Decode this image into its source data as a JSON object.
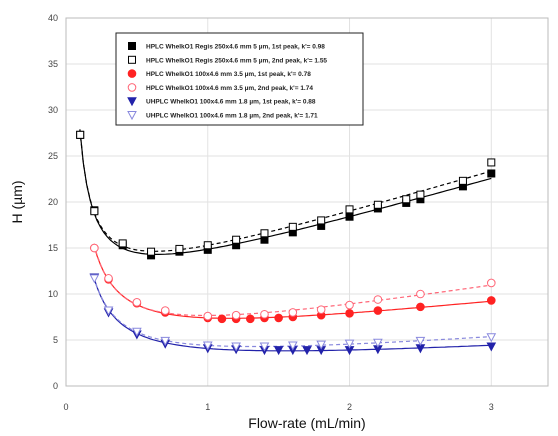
{
  "chart_data": {
    "type": "scatter",
    "xlabel": "Flow-rate (mL/min)",
    "ylabel": "H (µm)",
    "xlim": [
      0,
      3.4
    ],
    "ylim": [
      0,
      40
    ],
    "xticks": [
      0,
      1,
      2,
      3
    ],
    "yticks": [
      0,
      5,
      10,
      15,
      20,
      25,
      30,
      35,
      40
    ],
    "grid": true,
    "legend_position": "top-left",
    "series": [
      {
        "name": "HPLC WhelkO1 Regis 250x4.6 mm 5 µm, 1st peak, k'= 0.98",
        "color": "#000000",
        "marker": "square",
        "filled": true,
        "line": "solid",
        "x": [
          0.1,
          0.2,
          0.4,
          0.6,
          0.8,
          1.0,
          1.2,
          1.4,
          1.6,
          1.8,
          2.0,
          2.2,
          2.4,
          2.5,
          2.8,
          3.0
        ],
        "y": [
          27.3,
          19.1,
          15.3,
          14.2,
          14.6,
          14.8,
          15.3,
          15.9,
          16.7,
          17.4,
          18.4,
          19.3,
          19.9,
          20.3,
          21.7,
          23.1
        ]
      },
      {
        "name": "HPLC WhelkO1 Regis 250x4.6 mm 5 µm, 2nd peak, k'= 1.55",
        "color": "#000000",
        "marker": "square",
        "filled": false,
        "line": "dashed",
        "x": [
          0.1,
          0.2,
          0.4,
          0.6,
          0.8,
          1.0,
          1.2,
          1.4,
          1.6,
          1.8,
          2.0,
          2.2,
          2.4,
          2.5,
          2.8,
          3.0
        ],
        "y": [
          27.3,
          19.0,
          15.5,
          14.6,
          14.9,
          15.3,
          15.9,
          16.6,
          17.3,
          18.0,
          19.2,
          19.7,
          20.3,
          20.8,
          22.3,
          24.3
        ]
      },
      {
        "name": "HPLC WhelkO1 100x4.6 mm 3.5 µm, 1st peak, k'= 0.78",
        "color": "#ff2222",
        "marker": "circle",
        "filled": true,
        "line": "solid",
        "x": [
          0.2,
          0.3,
          0.5,
          0.7,
          1.0,
          1.1,
          1.2,
          1.3,
          1.4,
          1.5,
          1.6,
          1.8,
          2.0,
          2.2,
          2.5,
          3.0
        ],
        "y": [
          15.0,
          11.6,
          9.0,
          8.0,
          7.4,
          7.3,
          7.3,
          7.3,
          7.4,
          7.4,
          7.5,
          7.7,
          7.9,
          8.2,
          8.6,
          9.3
        ]
      },
      {
        "name": "HPLC WhelkO1 100x4.6 mm 3.5 µm, 2nd peak, k'= 1.74",
        "color": "#ff6677",
        "marker": "circle",
        "filled": false,
        "line": "dashed",
        "x": [
          0.2,
          0.3,
          0.5,
          0.7,
          1.0,
          1.2,
          1.4,
          1.6,
          1.8,
          2.0,
          2.2,
          2.5,
          3.0
        ],
        "y": [
          15.0,
          11.7,
          9.1,
          8.2,
          7.6,
          7.7,
          7.8,
          8.0,
          8.3,
          8.8,
          9.4,
          10.0,
          11.2
        ]
      },
      {
        "name": "UHPLC WhelkO1 100x4.6 mm 1.8 µm, 1st peak, k'= 0.88",
        "color": "#2222aa",
        "marker": "triangle-down",
        "filled": true,
        "line": "solid",
        "x": [
          0.2,
          0.3,
          0.5,
          0.7,
          1.0,
          1.2,
          1.4,
          1.5,
          1.6,
          1.7,
          1.8,
          2.0,
          2.2,
          2.5,
          3.0
        ],
        "y": [
          11.8,
          8.0,
          5.6,
          4.6,
          4.1,
          4.0,
          3.9,
          3.9,
          3.9,
          3.9,
          3.9,
          3.9,
          4.0,
          4.1,
          4.3
        ]
      },
      {
        "name": "UHPLC WhelkO1 100x4.6 mm 1.8 µm, 2nd peak, k'= 1.71",
        "color": "#8888dd",
        "marker": "triangle-down",
        "filled": false,
        "line": "dashed",
        "x": [
          0.2,
          0.3,
          0.5,
          0.7,
          1.0,
          1.2,
          1.4,
          1.6,
          1.8,
          2.0,
          2.2,
          2.5,
          3.0
        ],
        "y": [
          11.7,
          8.2,
          5.9,
          4.9,
          4.4,
          4.3,
          4.3,
          4.4,
          4.5,
          4.6,
          4.7,
          4.9,
          5.3
        ]
      }
    ]
  }
}
